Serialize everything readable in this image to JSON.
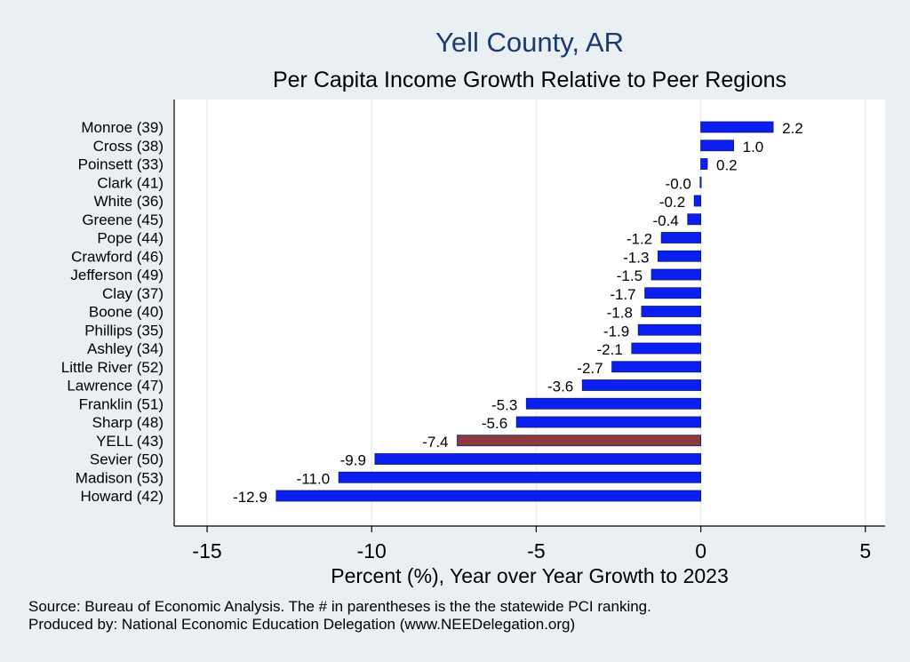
{
  "chart_data": {
    "type": "bar",
    "orientation": "horizontal",
    "title": "Yell County, AR",
    "subtitle": "Per Capita Income Growth Relative to Peer Regions",
    "xlabel": "Percent (%), Year over Year Growth to 2023",
    "ylabel": "",
    "xlim": [
      -16,
      5.6
    ],
    "xticks": [
      -15,
      -10,
      -5,
      0,
      5
    ],
    "xtick_labels": [
      "-15",
      "-10",
      "-5",
      "0",
      "5"
    ],
    "grid": true,
    "categories": [
      "Monroe (39)",
      "Cross (38)",
      "Poinsett (33)",
      "Clark (41)",
      "White (36)",
      "Greene (45)",
      "Pope (44)",
      "Crawford (46)",
      "Jefferson (49)",
      "Clay (37)",
      "Boone (40)",
      "Phillips (35)",
      "Ashley (34)",
      "Little River (52)",
      "Lawrence (47)",
      "Franklin (51)",
      "Sharp (48)",
      "YELL (43)",
      "Sevier (50)",
      "Madison (53)",
      "Howard (42)"
    ],
    "values": [
      2.2,
      1.0,
      0.2,
      -0.02,
      -0.2,
      -0.4,
      -1.2,
      -1.3,
      -1.5,
      -1.7,
      -1.8,
      -1.9,
      -2.1,
      -2.7,
      -3.6,
      -5.3,
      -5.6,
      -7.4,
      -9.9,
      -11.0,
      -12.9
    ],
    "value_labels": [
      "2.2",
      "1.0",
      "0.2",
      "-0.0",
      "-0.2",
      "-0.4",
      "-1.2",
      "-1.3",
      "-1.5",
      "-1.7",
      "-1.8",
      "-1.9",
      "-2.1",
      "-2.7",
      "-3.6",
      "-5.3",
      "-5.6",
      "-7.4",
      "-9.9",
      "-11.0",
      "-12.9"
    ],
    "highlight": "YELL (43)",
    "colors": {
      "bar": "#0a1ff0",
      "highlight": "#8c3a3c",
      "plot_bg": "#ffffff",
      "grid": "#e9eff2"
    }
  },
  "footer": {
    "source": "Source: Bureau of Economic Analysis. The # in parentheses is the the statewide PCI ranking.",
    "produced": "Produced by: National Economic Education Delegation (www.NEEDelegation.org)"
  }
}
